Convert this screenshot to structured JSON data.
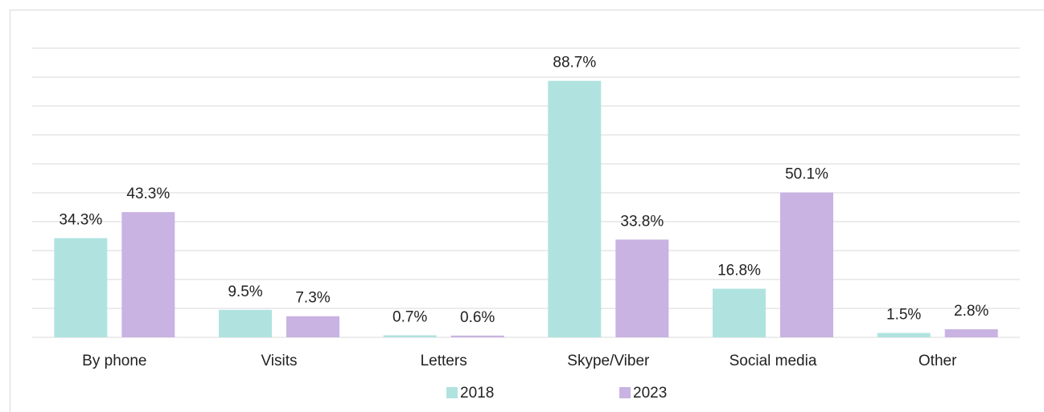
{
  "chart_data": {
    "type": "bar",
    "categories": [
      "By phone",
      "Visits",
      "Letters",
      "Skype/Viber",
      "Social media",
      "Other"
    ],
    "series": [
      {
        "name": "2018",
        "color": "#b0e3e0",
        "values": [
          34.3,
          9.5,
          0.7,
          88.7,
          16.8,
          1.5
        ],
        "value_labels": [
          "34.3%",
          "9.5%",
          "0.7%",
          "88.7%",
          "16.8%",
          "1.5%"
        ]
      },
      {
        "name": "2023",
        "color": "#c9b3e2",
        "values": [
          43.3,
          7.3,
          0.6,
          33.8,
          50.1,
          2.8
        ],
        "value_labels": [
          "43.3%",
          "7.3%",
          "0.6%",
          "33.8%",
          "50.1%",
          "2.8%"
        ]
      }
    ],
    "ylim": [
      0,
      100
    ],
    "yticks": [
      0,
      10,
      20,
      30,
      40,
      50,
      60,
      70,
      80,
      90,
      100
    ],
    "grid": true,
    "legend": "bottom"
  }
}
